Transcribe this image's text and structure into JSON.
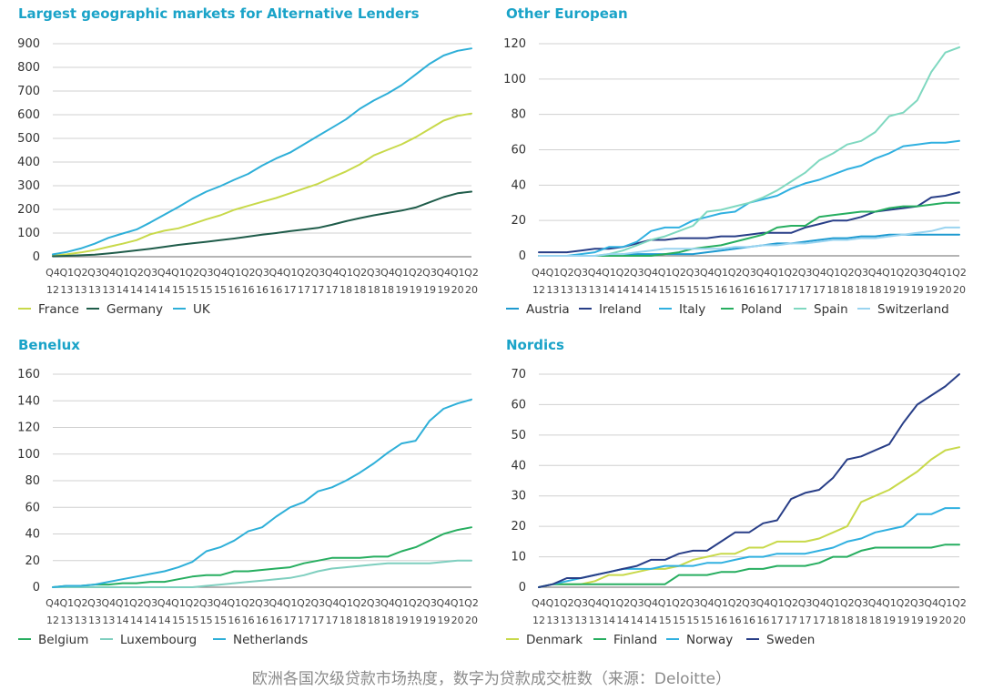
{
  "caption": "欧洲各国次级贷款市场热度，数字为贷款成交桩数（来源：Deloitte）",
  "periods": [
    "Q4 12",
    "Q1 13",
    "Q2 13",
    "Q3 13",
    "Q4 13",
    "Q1 14",
    "Q2 14",
    "Q3 14",
    "Q4 14",
    "Q1 15",
    "Q2 15",
    "Q3 15",
    "Q4 15",
    "Q1 16",
    "Q2 16",
    "Q3 16",
    "Q4 16",
    "Q1 17",
    "Q2 17",
    "Q3 17",
    "Q4 17",
    "Q1 18",
    "Q2 18",
    "Q3 18",
    "Q4 18",
    "Q1 19",
    "Q2 19",
    "Q3 19",
    "Q4 19",
    "Q1 20",
    "Q2 20"
  ],
  "chart_data": [
    {
      "type": "line",
      "title": "Largest geographic markets for Alternative Lenders",
      "xlabel": "",
      "ylabel": "",
      "ylim": [
        0,
        900
      ],
      "yticks": [
        0,
        100,
        200,
        300,
        400,
        500,
        600,
        700,
        800,
        900
      ],
      "grid": true,
      "legend_position": "bottom",
      "series": [
        {
          "name": "France",
          "color": "#c8d94a",
          "values": [
            5,
            10,
            18,
            28,
            42,
            55,
            70,
            95,
            110,
            120,
            138,
            158,
            175,
            198,
            215,
            232,
            248,
            268,
            288,
            308,
            335,
            360,
            390,
            428,
            452,
            475,
            505,
            540,
            575,
            595,
            605
          ]
        },
        {
          "name": "Germany",
          "color": "#1f5c4a",
          "values": [
            2,
            4,
            6,
            9,
            14,
            20,
            27,
            34,
            42,
            50,
            57,
            63,
            70,
            77,
            85,
            93,
            100,
            108,
            115,
            122,
            135,
            150,
            163,
            175,
            185,
            195,
            208,
            230,
            252,
            268,
            275
          ]
        },
        {
          "name": "UK",
          "color": "#2eafd8",
          "values": [
            10,
            20,
            35,
            55,
            80,
            98,
            115,
            145,
            178,
            210,
            245,
            275,
            298,
            325,
            350,
            385,
            415,
            440,
            475,
            510,
            545,
            580,
            625,
            660,
            690,
            725,
            770,
            815,
            850,
            870,
            880
          ]
        }
      ]
    },
    {
      "type": "line",
      "title": "Other European",
      "xlabel": "",
      "ylabel": "",
      "ylim": [
        0,
        120
      ],
      "yticks": [
        0,
        20,
        40,
        60,
        80,
        100,
        120
      ],
      "grid": true,
      "legend_position": "bottom",
      "series": [
        {
          "name": "Austria",
          "color": "#1e9ad0",
          "values": [
            0,
            0,
            0,
            0,
            0,
            0,
            1,
            1,
            1,
            1,
            1,
            1,
            2,
            3,
            4,
            5,
            6,
            7,
            7,
            8,
            9,
            10,
            10,
            11,
            11,
            12,
            12,
            12,
            12,
            12,
            12
          ]
        },
        {
          "name": "Ireland",
          "color": "#283e87",
          "values": [
            2,
            2,
            2,
            3,
            4,
            4,
            5,
            7,
            9,
            9,
            10,
            10,
            10,
            11,
            11,
            12,
            13,
            13,
            13,
            16,
            18,
            20,
            20,
            22,
            25,
            26,
            27,
            28,
            33,
            34,
            36
          ]
        },
        {
          "name": "Italy",
          "color": "#30b0e0",
          "values": [
            0,
            0,
            0,
            1,
            2,
            5,
            5,
            8,
            14,
            16,
            16,
            20,
            22,
            24,
            25,
            30,
            32,
            34,
            38,
            41,
            43,
            46,
            49,
            51,
            55,
            58,
            62,
            63,
            64,
            64,
            65
          ]
        },
        {
          "name": "Poland",
          "color": "#27ae60",
          "values": [
            0,
            0,
            0,
            0,
            0,
            0,
            0,
            0,
            0,
            1,
            2,
            4,
            5,
            6,
            8,
            10,
            12,
            16,
            17,
            17,
            22,
            23,
            24,
            25,
            25,
            27,
            28,
            28,
            29,
            30,
            30
          ]
        },
        {
          "name": "Spain",
          "color": "#7fd8c0",
          "values": [
            0,
            0,
            0,
            0,
            0,
            1,
            3,
            6,
            9,
            11,
            14,
            17,
            25,
            26,
            28,
            30,
            33,
            37,
            42,
            47,
            54,
            58,
            63,
            65,
            70,
            79,
            81,
            88,
            104,
            115,
            118
          ]
        },
        {
          "name": "Switzerland",
          "color": "#9ad4f0",
          "values": [
            0,
            0,
            0,
            0,
            0,
            1,
            1,
            2,
            3,
            4,
            4,
            4,
            4,
            4,
            5,
            5,
            6,
            6,
            7,
            7,
            8,
            9,
            9,
            10,
            10,
            11,
            12,
            13,
            14,
            16,
            16
          ]
        }
      ]
    },
    {
      "type": "line",
      "title": "Benelux",
      "xlabel": "",
      "ylabel": "",
      "ylim": [
        0,
        160
      ],
      "yticks": [
        0,
        20,
        40,
        60,
        80,
        100,
        120,
        140,
        160
      ],
      "grid": true,
      "legend_position": "bottom",
      "series": [
        {
          "name": "Belgium",
          "color": "#27ae60",
          "values": [
            0,
            1,
            1,
            2,
            2,
            3,
            3,
            4,
            4,
            6,
            8,
            9,
            9,
            12,
            12,
            13,
            14,
            15,
            18,
            20,
            22,
            22,
            22,
            23,
            23,
            27,
            30,
            35,
            40,
            43,
            45
          ]
        },
        {
          "name": "Luxembourg",
          "color": "#7fcfbf",
          "values": [
            0,
            0,
            0,
            0,
            0,
            0,
            0,
            0,
            0,
            0,
            0,
            1,
            2,
            3,
            4,
            5,
            6,
            7,
            9,
            12,
            14,
            15,
            16,
            17,
            18,
            18,
            18,
            18,
            19,
            20,
            20
          ]
        },
        {
          "name": "Netherlands",
          "color": "#2eafd8",
          "values": [
            0,
            1,
            1,
            2,
            4,
            6,
            8,
            10,
            12,
            15,
            19,
            27,
            30,
            35,
            42,
            45,
            53,
            60,
            64,
            72,
            75,
            80,
            86,
            93,
            101,
            108,
            110,
            125,
            134,
            138,
            141
          ]
        }
      ]
    },
    {
      "type": "line",
      "title": "Nordics",
      "xlabel": "",
      "ylabel": "",
      "ylim": [
        0,
        70
      ],
      "yticks": [
        0,
        10,
        20,
        30,
        40,
        50,
        60,
        70
      ],
      "grid": true,
      "legend_position": "bottom",
      "series": [
        {
          "name": "Denmark",
          "color": "#c8d94a",
          "values": [
            0,
            1,
            1,
            1,
            2,
            4,
            4,
            5,
            6,
            6,
            7,
            9,
            10,
            11,
            11,
            13,
            13,
            15,
            15,
            15,
            16,
            18,
            20,
            28,
            30,
            32,
            35,
            38,
            42,
            45,
            46
          ]
        },
        {
          "name": "Finland",
          "color": "#27ae60",
          "values": [
            0,
            1,
            1,
            1,
            1,
            1,
            1,
            1,
            1,
            1,
            4,
            4,
            4,
            5,
            5,
            6,
            6,
            7,
            7,
            7,
            8,
            10,
            10,
            12,
            13,
            13,
            13,
            13,
            13,
            14,
            14
          ]
        },
        {
          "name": "Norway",
          "color": "#30b0e0",
          "values": [
            0,
            1,
            2,
            3,
            4,
            5,
            6,
            6,
            6,
            7,
            7,
            7,
            8,
            8,
            9,
            10,
            10,
            11,
            11,
            11,
            12,
            13,
            15,
            16,
            18,
            19,
            20,
            24,
            24,
            26,
            26
          ]
        },
        {
          "name": "Sweden",
          "color": "#283e87",
          "values": [
            0,
            1,
            3,
            3,
            4,
            5,
            6,
            7,
            9,
            9,
            11,
            12,
            12,
            15,
            18,
            18,
            21,
            22,
            29,
            31,
            32,
            36,
            42,
            43,
            45,
            47,
            54,
            60,
            63,
            66,
            70
          ]
        }
      ]
    }
  ]
}
